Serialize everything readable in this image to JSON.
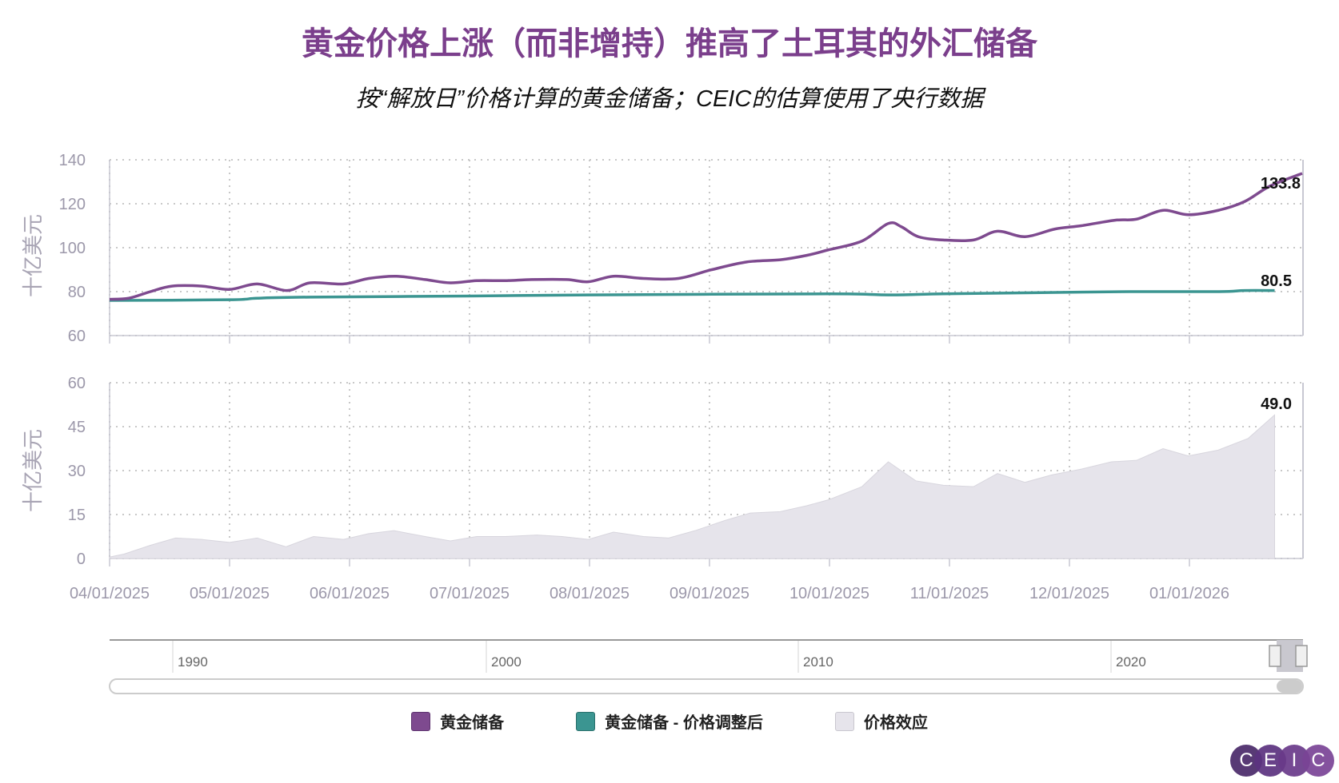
{
  "title": "黄金价格上涨（而非增持）推高了土耳其的外汇储备",
  "subtitle": "按“解放日”价格计算的黄金储备；CEIC的估算使用了央行数据",
  "colors": {
    "title": "#7b3f8c",
    "gold": "#7e4a8f",
    "adjusted": "#3b9591",
    "effect": "#e6e4eb"
  },
  "chart_data": [
    {
      "type": "line",
      "ylabel": "十亿美元",
      "ylim": [
        60,
        140
      ],
      "yticks": [
        60,
        80,
        100,
        120,
        140
      ],
      "series": [
        {
          "name": "黄金储备",
          "end_label": "133.8",
          "x": [
            0,
            0.16,
            0.34,
            0.52,
            0.77,
            1.0,
            1.23,
            1.48,
            1.67,
            1.95,
            2.16,
            2.39,
            2.63,
            2.84,
            3.06,
            3.3,
            3.52,
            3.81,
            3.99,
            4.2,
            4.45,
            4.74,
            5.02,
            5.31,
            5.59,
            5.81,
            5.99,
            6.27,
            6.49,
            6.6,
            6.74,
            6.95,
            7.2,
            7.4,
            7.63,
            7.88,
            8.1,
            8.38,
            8.56,
            8.78,
            8.99,
            9.24,
            9.46,
            9.67,
            9.94
          ],
          "y": [
            76.5,
            77,
            80,
            82.5,
            82.5,
            81,
            83.5,
            80.5,
            84,
            83.5,
            86,
            87,
            85.5,
            84,
            85,
            85,
            85.5,
            85.5,
            84.5,
            87,
            86,
            86,
            90,
            93.5,
            94.5,
            96.5,
            99,
            103,
            111,
            109.5,
            105,
            103.5,
            103.5,
            107.5,
            105,
            108.5,
            110,
            112.5,
            113,
            117,
            115,
            117,
            121,
            128,
            133.8
          ]
        },
        {
          "name": "黄金储备 - 价格调整后",
          "end_label": "80.5",
          "x": [
            0,
            1.0,
            1.23,
            1.67,
            3.0,
            4.0,
            5.99,
            6.49,
            6.95,
            7.7,
            8.5,
            9.24,
            9.46,
            9.71
          ],
          "y": [
            76,
            76.3,
            77,
            77.5,
            78,
            78.5,
            79,
            78.5,
            79,
            79.5,
            80,
            80,
            80.5,
            80.5
          ]
        }
      ]
    },
    {
      "type": "area",
      "ylabel": "十亿美元",
      "ylim": [
        0,
        60
      ],
      "yticks": [
        0,
        15,
        30,
        45,
        60
      ],
      "series": [
        {
          "name": "价格效应",
          "end_label": "49.0",
          "x": [
            0,
            0.12,
            0.34,
            0.55,
            0.77,
            1.0,
            1.23,
            1.47,
            1.7,
            1.95,
            2.16,
            2.37,
            2.63,
            2.84,
            3.06,
            3.3,
            3.56,
            3.77,
            3.99,
            4.2,
            4.45,
            4.66,
            4.88,
            5.13,
            5.34,
            5.59,
            5.81,
            5.99,
            6.27,
            6.49,
            6.72,
            6.95,
            7.2,
            7.4,
            7.63,
            7.85,
            8.1,
            8.35,
            8.56,
            8.78,
            8.99,
            9.24,
            9.49,
            9.71
          ],
          "y": [
            0.5,
            1.5,
            4.5,
            7,
            6.5,
            5.5,
            7,
            4,
            7.5,
            6.5,
            8.5,
            9.5,
            7.5,
            6,
            7.5,
            7.5,
            8,
            7.5,
            6.5,
            9,
            7.5,
            7,
            9.5,
            13,
            15.5,
            16,
            18,
            20,
            24.5,
            33,
            26.5,
            25,
            24.5,
            29,
            26,
            28.5,
            30.5,
            33,
            33.5,
            37.5,
            35,
            37,
            41,
            49
          ]
        }
      ]
    }
  ],
  "x_axis": {
    "xlim": [
      0,
      9.94
    ],
    "categories": [
      "04/01/2025",
      "05/01/2025",
      "06/01/2025",
      "07/01/2025",
      "08/01/2025",
      "09/01/2025",
      "10/01/2025",
      "11/01/2025",
      "12/01/2025",
      "01/01/2026"
    ]
  },
  "navigator": {
    "labels": [
      "1990",
      "2000",
      "2010",
      "2020"
    ]
  },
  "legend": [
    {
      "label": "黄金储备"
    },
    {
      "label": "黄金储备 - 价格调整后"
    },
    {
      "label": "价格效应"
    }
  ],
  "logo": [
    "C",
    "E",
    "I",
    "C"
  ]
}
